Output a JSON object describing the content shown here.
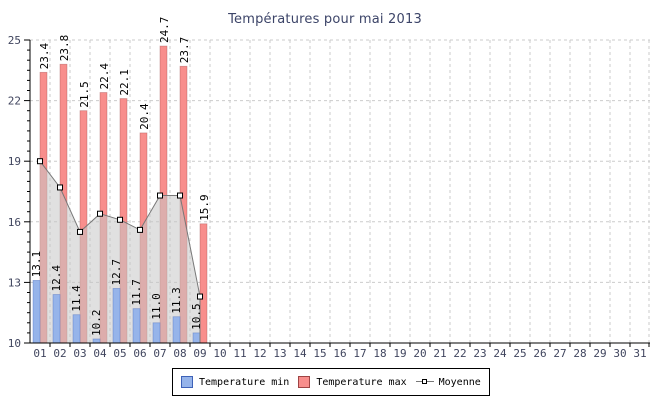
{
  "title": "Températures pour mai 2013",
  "legend": {
    "min_label": "Temperature min",
    "max_label": "Temperature max",
    "moyenne_label": "Moyenne"
  },
  "colors": {
    "min_fill": "#96B4EA",
    "min_border": "#3E62B8",
    "max_fill": "#F88E8C",
    "max_border": "#9E4444",
    "line": "#787878",
    "marker_fill": "#FFFFFF",
    "marker_border": "#000000",
    "area_fill": "rgba(198,198,198,0.55)",
    "grid": "#CBCBCB",
    "axis": "#000000",
    "tick_label": "#40455E",
    "value_label": "#000000",
    "title_color": "#3C4468"
  },
  "chart_data": {
    "type": "bar",
    "title": "Températures pour mai 2013",
    "categories": [
      "01",
      "02",
      "03",
      "04",
      "05",
      "06",
      "07",
      "08",
      "09",
      "10",
      "11",
      "12",
      "13",
      "14",
      "15",
      "16",
      "17",
      "18",
      "19",
      "20",
      "21",
      "22",
      "23",
      "24",
      "25",
      "26",
      "27",
      "28",
      "29",
      "30",
      "31"
    ],
    "series": [
      {
        "name": "Temperature min",
        "type": "bar",
        "values": [
          13.1,
          12.4,
          11.4,
          10.2,
          12.7,
          11.7,
          11.0,
          11.3,
          10.5
        ]
      },
      {
        "name": "Temperature max",
        "type": "bar",
        "values": [
          23.4,
          23.8,
          21.5,
          22.4,
          22.1,
          20.4,
          24.7,
          23.7,
          15.9
        ]
      },
      {
        "name": "Moyenne",
        "type": "line-area",
        "values": [
          19.0,
          17.7,
          15.5,
          16.4,
          16.1,
          15.6,
          17.3,
          17.3,
          12.3
        ]
      }
    ],
    "xlabel": "",
    "ylabel": "",
    "ylim": [
      10,
      25
    ],
    "yticks": [
      10,
      13,
      16,
      19,
      22,
      25
    ],
    "y_minor_step": 0.5,
    "grid": true,
    "grid_style": "dashed",
    "value_labels": true,
    "value_label_rotation": -90,
    "legend_position": "bottom"
  }
}
